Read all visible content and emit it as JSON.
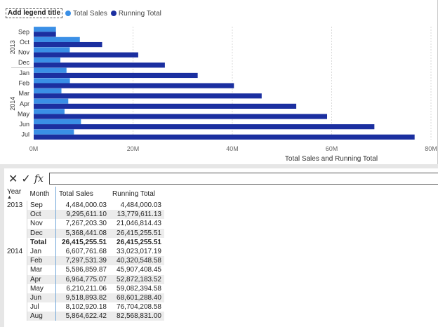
{
  "legend": {
    "title": "Add legend title",
    "items": [
      {
        "label": "Total Sales",
        "color": "#3A8FE6"
      },
      {
        "label": "Running Total",
        "color": "#1B2FA0"
      }
    ]
  },
  "chart_data": {
    "type": "bar",
    "orientation": "horizontal",
    "groups": [
      {
        "label": "2013",
        "categories": [
          "Sep",
          "Oct",
          "Nov",
          "Dec"
        ]
      },
      {
        "label": "2014",
        "categories": [
          "Jan",
          "Feb",
          "Mar",
          "Apr",
          "May",
          "Jun",
          "Jul"
        ]
      }
    ],
    "categories": [
      "Sep",
      "Oct",
      "Nov",
      "Dec",
      "Jan",
      "Feb",
      "Mar",
      "Apr",
      "May",
      "Jun",
      "Jul"
    ],
    "series": [
      {
        "name": "Total Sales",
        "color": "#3A8FE6",
        "values": [
          4484000.03,
          9295611.1,
          7267203.3,
          5368441.08,
          6607761.68,
          7297531.39,
          5586859.87,
          6964775.07,
          6210211.06,
          9518893.82,
          8102920.18
        ]
      },
      {
        "name": "Running Total",
        "color": "#1B2FA0",
        "values": [
          4484000.03,
          13779611.13,
          21046814.43,
          26415255.51,
          33023017.19,
          40320548.58,
          45907408.45,
          52872183.52,
          59082394.58,
          68601288.4,
          76704208.58
        ]
      }
    ],
    "xlim": [
      0,
      80000000
    ],
    "xticks": [
      "0M",
      "20M",
      "40M",
      "60M",
      "80M"
    ],
    "xtick_values": [
      0,
      20000000,
      40000000,
      60000000,
      80000000
    ],
    "xlabel": "Total Sales and Running Total",
    "grid": true,
    "legend": "top-left"
  },
  "formula_bar": {
    "cancel_icon": "x-icon",
    "commit_icon": "check-icon",
    "fx_label": "fx",
    "value": ""
  },
  "table": {
    "headers": {
      "year": "Year",
      "month": "Month",
      "sales": "Total Sales",
      "running": "Running Total"
    },
    "rows": [
      {
        "year": "2013",
        "month": "Sep",
        "sales": "4,484,000.03",
        "running": "4,484,000.03",
        "shade": false
      },
      {
        "year": "",
        "month": "Oct",
        "sales": "9,295,611.10",
        "running": "13,779,611.13",
        "shade": true
      },
      {
        "year": "",
        "month": "Nov",
        "sales": "7,267,203.30",
        "running": "21,046,814.43",
        "shade": false
      },
      {
        "year": "",
        "month": "Dec",
        "sales": "5,368,441.08",
        "running": "26,415,255.51",
        "shade": true
      },
      {
        "year": "",
        "month": "Total",
        "sales": "26,415,255.51",
        "running": "26,415,255.51",
        "shade": false,
        "total": true
      },
      {
        "year": "2014",
        "month": "Jan",
        "sales": "6,607,761.68",
        "running": "33,023,017.19",
        "shade": false
      },
      {
        "year": "",
        "month": "Feb",
        "sales": "7,297,531.39",
        "running": "40,320,548.58",
        "shade": true
      },
      {
        "year": "",
        "month": "Mar",
        "sales": "5,586,859.87",
        "running": "45,907,408.45",
        "shade": false
      },
      {
        "year": "",
        "month": "Apr",
        "sales": "6,964,775.07",
        "running": "52,872,183.52",
        "shade": true
      },
      {
        "year": "",
        "month": "May",
        "sales": "6,210,211.06",
        "running": "59,082,394.58",
        "shade": false
      },
      {
        "year": "",
        "month": "Jun",
        "sales": "9,518,893.82",
        "running": "68,601,288.40",
        "shade": true
      },
      {
        "year": "",
        "month": "Jul",
        "sales": "8,102,920.18",
        "running": "76,704,208.58",
        "shade": false
      },
      {
        "year": "",
        "month": "Aug",
        "sales": "5,864,622.42",
        "running": "82,568,831.00",
        "shade": true
      }
    ]
  }
}
